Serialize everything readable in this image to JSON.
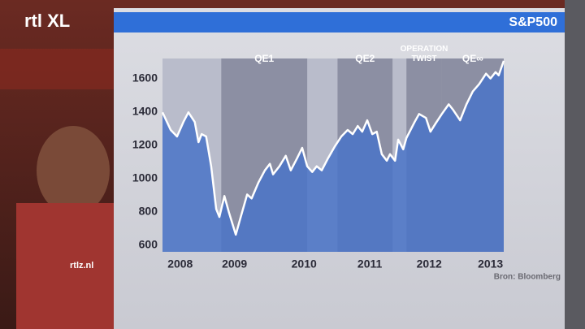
{
  "logo": "rtl XL",
  "watermark": "rtlz.nl",
  "chart_data": {
    "type": "line",
    "title": "S&P500",
    "source": "Bron: Bloomberg",
    "color": "#ffffff",
    "area_color": "#4a74c8",
    "xlim": [
      2008.0,
      2013.4
    ],
    "ylim": [
      560,
      1720
    ],
    "xticks": [
      {
        "value": 2008.28,
        "label": "2008"
      },
      {
        "value": 2009.14,
        "label": "2009"
      },
      {
        "value": 2010.24,
        "label": "2010"
      },
      {
        "value": 2011.28,
        "label": "2011"
      },
      {
        "value": 2012.22,
        "label": "2012"
      },
      {
        "value": 2013.19,
        "label": "2013"
      }
    ],
    "yticks": [
      600,
      800,
      1000,
      1200,
      1400,
      1600
    ],
    "bands": [
      {
        "label": "QE1",
        "start": 2008.93,
        "end": 2010.29
      },
      {
        "label": "QE2",
        "start": 2010.77,
        "end": 2011.64
      },
      {
        "label": "OPERATION TWIST",
        "start": 2011.86,
        "end": 2012.42
      },
      {
        "label": "QE∞",
        "start": 2012.42,
        "end": 2013.4
      }
    ],
    "x": [
      2008.0,
      2008.13,
      2008.23,
      2008.33,
      2008.41,
      2008.51,
      2008.57,
      2008.62,
      2008.69,
      2008.77,
      2008.85,
      2008.9,
      2008.98,
      2009.05,
      2009.16,
      2009.23,
      2009.34,
      2009.41,
      2009.52,
      2009.62,
      2009.7,
      2009.75,
      2009.85,
      2009.95,
      2010.03,
      2010.13,
      2010.21,
      2010.29,
      2010.37,
      2010.44,
      2010.52,
      2010.62,
      2010.73,
      2010.83,
      2010.93,
      2011.01,
      2011.09,
      2011.16,
      2011.24,
      2011.32,
      2011.39,
      2011.47,
      2011.55,
      2011.6,
      2011.68,
      2011.73,
      2011.81,
      2011.86,
      2011.99,
      2012.06,
      2012.17,
      2012.24,
      2012.32,
      2012.42,
      2012.53,
      2012.6,
      2012.71,
      2012.81,
      2012.91,
      2013.01,
      2013.12,
      2013.19,
      2013.27,
      2013.32,
      2013.4
    ],
    "values": [
      1397,
      1291,
      1252,
      1339,
      1397,
      1339,
      1218,
      1266,
      1252,
      1073,
      817,
      769,
      895,
      798,
      663,
      759,
      904,
      880,
      977,
      1049,
      1088,
      1025,
      1073,
      1136,
      1049,
      1122,
      1184,
      1073,
      1039,
      1073,
      1049,
      1122,
      1194,
      1252,
      1291,
      1266,
      1315,
      1281,
      1349,
      1266,
      1281,
      1146,
      1107,
      1146,
      1107,
      1233,
      1175,
      1243,
      1339,
      1387,
      1363,
      1281,
      1329,
      1387,
      1445,
      1411,
      1349,
      1445,
      1522,
      1566,
      1629,
      1600,
      1638,
      1619,
      1706
    ]
  }
}
